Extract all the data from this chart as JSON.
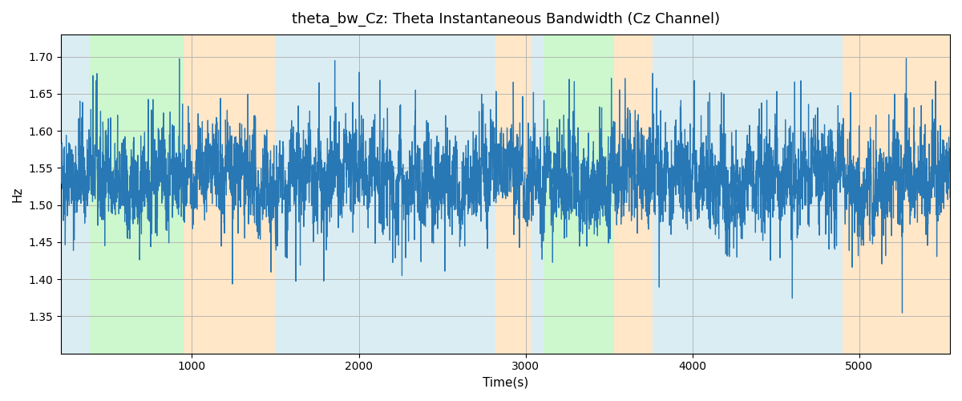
{
  "title": "theta_bw_Cz: Theta Instantaneous Bandwidth (Cz Channel)",
  "xlabel": "Time(s)",
  "ylabel": "Hz",
  "ylim": [
    1.3,
    1.73
  ],
  "xlim": [
    215,
    5545
  ],
  "line_color": "#2878b5",
  "line_width": 0.9,
  "background_color": "#ffffff",
  "grid_color": "#b0b0b0",
  "regions": [
    {
      "start": 215,
      "end": 385,
      "color": "#add8e6",
      "alpha": 0.45
    },
    {
      "start": 385,
      "end": 950,
      "color": "#90ee90",
      "alpha": 0.45
    },
    {
      "start": 950,
      "end": 1500,
      "color": "#ffd59b",
      "alpha": 0.55
    },
    {
      "start": 1500,
      "end": 2820,
      "color": "#add8e6",
      "alpha": 0.45
    },
    {
      "start": 2820,
      "end": 3030,
      "color": "#ffd59b",
      "alpha": 0.55
    },
    {
      "start": 3030,
      "end": 3110,
      "color": "#add8e6",
      "alpha": 0.45
    },
    {
      "start": 3110,
      "end": 3530,
      "color": "#90ee90",
      "alpha": 0.45
    },
    {
      "start": 3530,
      "end": 3760,
      "color": "#ffd59b",
      "alpha": 0.55
    },
    {
      "start": 3760,
      "end": 4900,
      "color": "#add8e6",
      "alpha": 0.45
    },
    {
      "start": 4900,
      "end": 5545,
      "color": "#ffd59b",
      "alpha": 0.55
    }
  ],
  "seed": 42,
  "n_points": 5330,
  "t_start": 215,
  "t_end": 5545,
  "base_value": 1.535,
  "noise_scale": 0.03,
  "spike_scale": 0.12
}
